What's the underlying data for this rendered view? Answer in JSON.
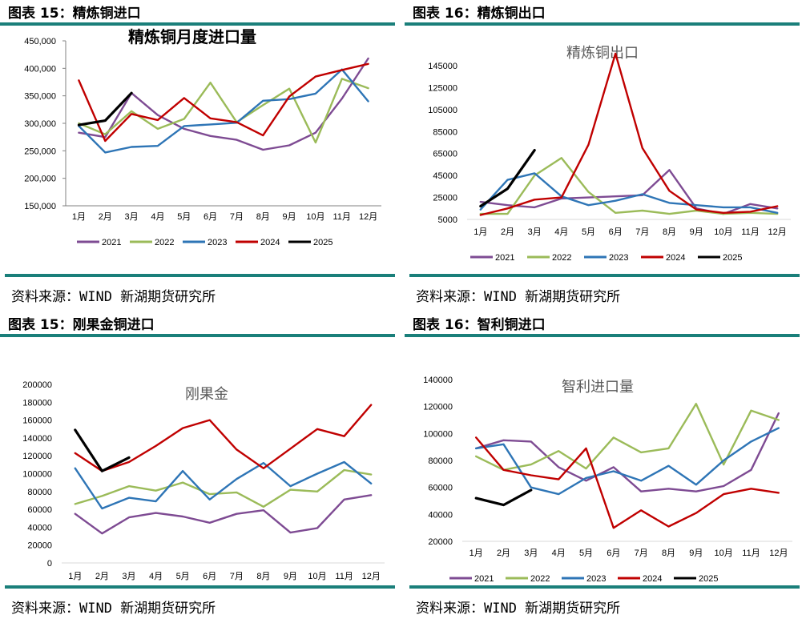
{
  "source_text": "资料来源：WIND 新湖期货研究所",
  "legend_labels": [
    "2021",
    "2022",
    "2023",
    "2024",
    "2025"
  ],
  "series_colors": [
    "#7e4b93",
    "#9bbb59",
    "#2e75b6",
    "#c00000",
    "#000000"
  ],
  "months": [
    "1月",
    "2月",
    "3月",
    "4月",
    "5月",
    "6月",
    "7月",
    "8月",
    "9月",
    "10月",
    "11月",
    "12月"
  ],
  "panels": [
    {
      "header": "图表 15：精炼铜进口",
      "chart_data": {
        "type": "line",
        "title": "精炼铜月度进口量",
        "ylim": [
          150000,
          450000
        ],
        "yticks": [
          150000,
          200000,
          250000,
          300000,
          350000,
          400000,
          450000
        ],
        "ytick_labels": [
          "150,000",
          "200,000",
          "250,000",
          "300,000",
          "350,000",
          "400,000",
          "450,000"
        ],
        "series": [
          {
            "name": "2021",
            "values": [
              283000,
              275000,
              355000,
              315000,
              290000,
              277000,
              270000,
              252000,
              260000,
              283000,
              345000,
              418000
            ]
          },
          {
            "name": "2022",
            "values": [
              300000,
              280000,
              322000,
              290000,
              308000,
              374000,
              302000,
              333000,
              363000,
              265000,
              381000,
              364000
            ]
          },
          {
            "name": "2023",
            "values": [
              295000,
              247000,
              257000,
              259000,
              295000,
              298000,
              301000,
              341000,
              344000,
              354000,
              398000,
              340000
            ]
          },
          {
            "name": "2024",
            "values": [
              378000,
              268000,
              317000,
              306000,
              346000,
              309000,
              302000,
              278000,
              349000,
              385000,
              397000,
              408000
            ]
          },
          {
            "name": "2025",
            "values": [
              297000,
              305000,
              355000
            ]
          }
        ]
      }
    },
    {
      "header": "图表 16：精炼铜出口",
      "chart_data": {
        "type": "line",
        "title": "精炼铜出口",
        "ylim": [
          5000,
          145000
        ],
        "yticks": [
          5000,
          25000,
          45000,
          65000,
          85000,
          105000,
          125000,
          145000
        ],
        "ytick_labels": [
          "5000",
          "25000",
          "45000",
          "65000",
          "85000",
          "105000",
          "125000",
          "145000"
        ],
        "series": [
          {
            "name": "2021",
            "values": [
              21000,
              18000,
              16000,
              24000,
              25000,
              26000,
              27000,
              50000,
              15000,
              10000,
              19000,
              15000
            ]
          },
          {
            "name": "2022",
            "values": [
              10000,
              10000,
              45000,
              61000,
              30000,
              11000,
              13000,
              10000,
              13000,
              10000,
              11000,
              10000
            ]
          },
          {
            "name": "2023",
            "values": [
              14000,
              41000,
              47000,
              26000,
              18000,
              22000,
              28000,
              20000,
              18000,
              16000,
              16000,
              11000
            ]
          },
          {
            "name": "2024",
            "values": [
              9000,
              15000,
              23000,
              25000,
              73000,
              156000,
              70000,
              31000,
              14000,
              11000,
              12000,
              17000
            ]
          },
          {
            "name": "2025",
            "values": [
              17000,
              33000,
              68000
            ]
          }
        ]
      }
    },
    {
      "header": "图表 15：刚果金铜进口",
      "chart_data": {
        "type": "line",
        "title": "刚果金",
        "ylim": [
          0,
          200000
        ],
        "yticks": [
          0,
          20000,
          40000,
          60000,
          80000,
          100000,
          120000,
          140000,
          160000,
          180000,
          200000
        ],
        "ytick_labels": [
          "0",
          "20000",
          "40000",
          "60000",
          "80000",
          "100000",
          "120000",
          "140000",
          "160000",
          "180000",
          "200000"
        ],
        "series": [
          {
            "name": "2021",
            "values": [
              55000,
              33000,
              51000,
              56000,
              52000,
              45000,
              55000,
              59000,
              34000,
              39000,
              71000,
              76000
            ]
          },
          {
            "name": "2022",
            "values": [
              66000,
              75000,
              86000,
              81000,
              90000,
              77000,
              79000,
              63000,
              82000,
              80000,
              104000,
              99000
            ]
          },
          {
            "name": "2023",
            "values": [
              106000,
              61000,
              73000,
              69000,
              103000,
              71000,
              94000,
              112000,
              86000,
              100000,
              113000,
              89000
            ]
          },
          {
            "name": "2024",
            "values": [
              123000,
              103000,
              113000,
              131000,
              151000,
              160000,
              127000,
              106000,
              128000,
              150000,
              142000,
              177000
            ]
          },
          {
            "name": "2025",
            "values": [
              149000,
              103000,
              118000
            ]
          }
        ]
      }
    },
    {
      "header": "图表 16：智利铜进口",
      "chart_data": {
        "type": "line",
        "title": "智利进口量",
        "ylim": [
          20000,
          140000
        ],
        "yticks": [
          20000,
          40000,
          60000,
          80000,
          100000,
          120000,
          140000
        ],
        "ytick_labels": [
          "20000",
          "40000",
          "60000",
          "80000",
          "100000",
          "120000",
          "140000"
        ],
        "series": [
          {
            "name": "2021",
            "values": [
              89000,
              95000,
              94000,
              75000,
              65000,
              75000,
              57000,
              59000,
              57000,
              61000,
              73000,
              115000
            ]
          },
          {
            "name": "2022",
            "values": [
              83000,
              73000,
              77000,
              87000,
              74000,
              97000,
              86000,
              89000,
              122000,
              77000,
              117000,
              110000
            ]
          },
          {
            "name": "2023",
            "values": [
              89000,
              92000,
              60000,
              55000,
              67000,
              72000,
              65000,
              76000,
              62000,
              80000,
              94000,
              104000
            ]
          },
          {
            "name": "2024",
            "values": [
              97000,
              73000,
              69000,
              66000,
              89000,
              30000,
              43000,
              31000,
              41000,
              55000,
              59000,
              56000
            ]
          },
          {
            "name": "2025",
            "values": [
              52000,
              47000,
              58000
            ]
          }
        ]
      }
    }
  ]
}
